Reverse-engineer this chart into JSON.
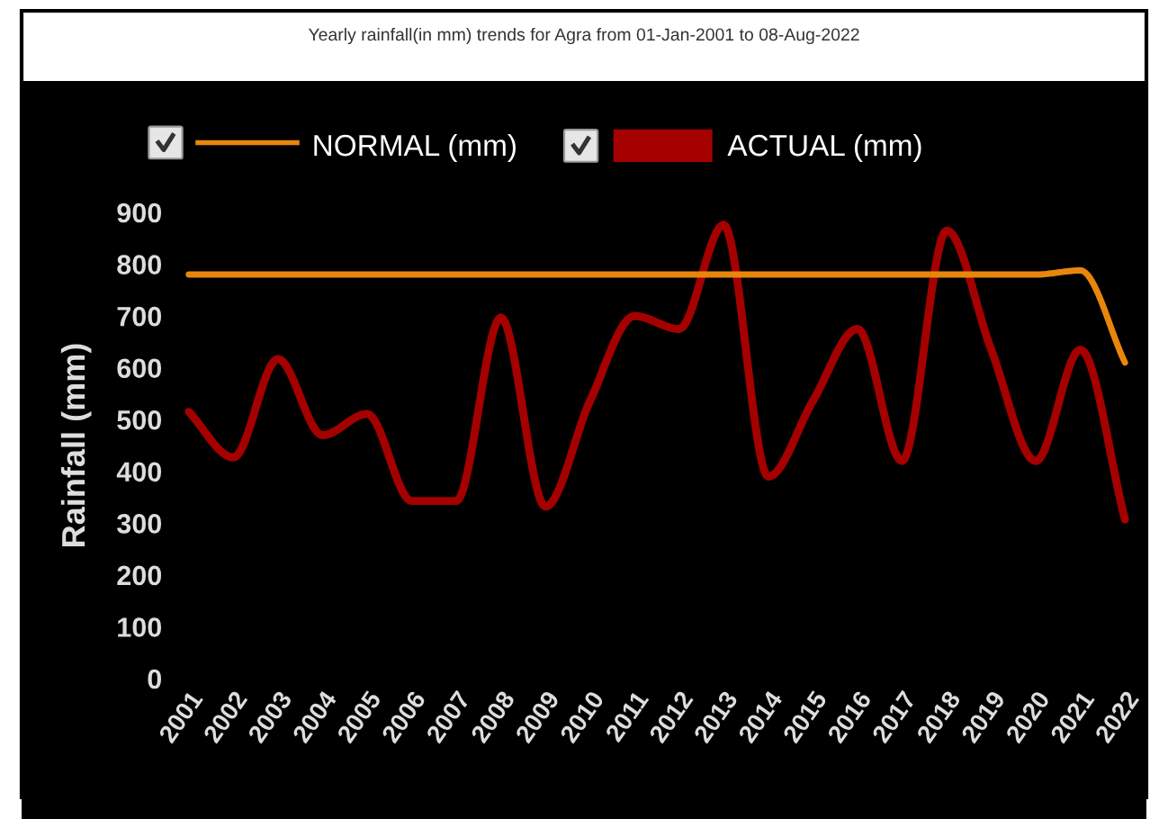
{
  "chart_data": {
    "type": "line",
    "title": "Yearly rainfall(in mm) trends for Agra from 01-Jan-2001 to 08-Aug-2022",
    "ylabel": "Rainfall (mm)",
    "categories": [
      "2001",
      "2002",
      "2003",
      "2004",
      "2005",
      "2006",
      "2007",
      "2008",
      "2009",
      "2010",
      "2011",
      "2012",
      "2013",
      "2014",
      "2015",
      "2016",
      "2017",
      "2018",
      "2019",
      "2020",
      "2021",
      "2022"
    ],
    "series": [
      {
        "name": "NORMAL (mm)",
        "color": "#e8860c",
        "values": [
          780,
          780,
          780,
          780,
          780,
          780,
          780,
          780,
          780,
          780,
          780,
          780,
          780,
          780,
          780,
          780,
          780,
          780,
          780,
          780,
          788,
          610
        ]
      },
      {
        "name": "ACTUAL (mm)",
        "color": "#a50000",
        "values": [
          515,
          427,
          617,
          470,
          511,
          343,
          343,
          697,
          332,
          536,
          700,
          675,
          876,
          390,
          536,
          675,
          420,
          865,
          635,
          420,
          635,
          307
        ]
      }
    ],
    "ylim": [
      0,
      900
    ],
    "yticks": [
      0,
      100,
      200,
      300,
      400,
      500,
      600,
      700,
      800,
      900
    ],
    "grid": false,
    "legend": "top left",
    "marker": "none",
    "line_style": "solid"
  }
}
